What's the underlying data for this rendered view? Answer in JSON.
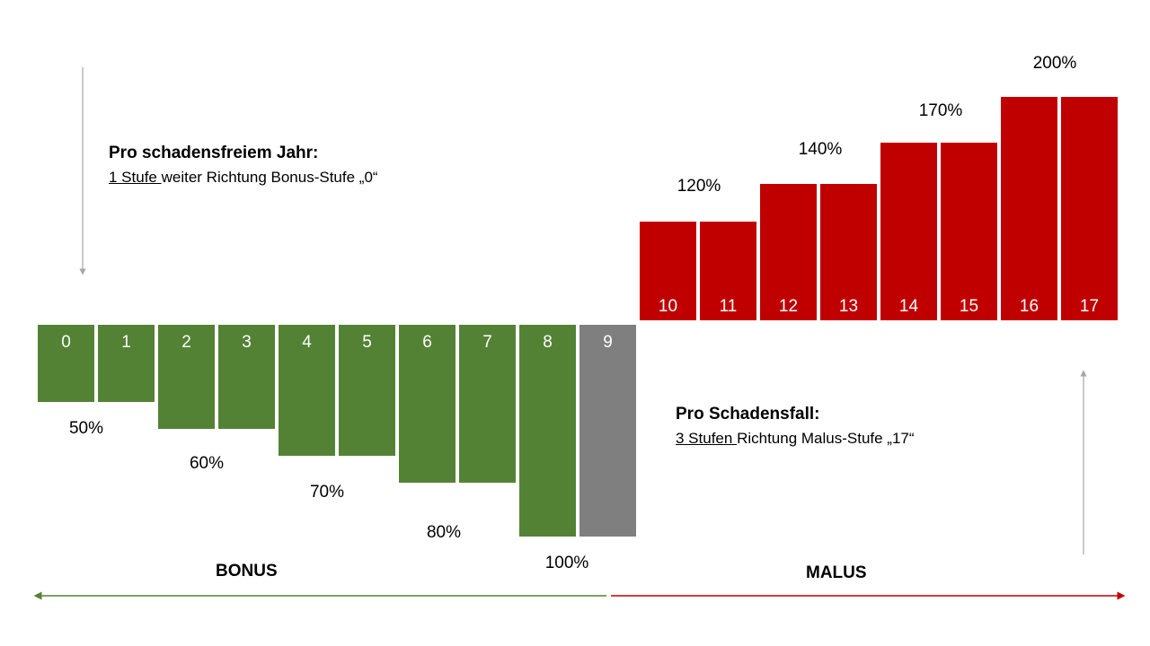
{
  "chart_data": {
    "type": "bar",
    "categories": [
      "0",
      "1",
      "2",
      "3",
      "4",
      "5",
      "6",
      "7",
      "8",
      "9",
      "10",
      "11",
      "12",
      "13",
      "14",
      "15",
      "16",
      "17"
    ],
    "values": [
      50,
      50,
      60,
      60,
      70,
      70,
      80,
      80,
      100,
      100,
      120,
      120,
      140,
      140,
      170,
      170,
      200,
      200
    ],
    "percent_labels": [
      {
        "text": "50%",
        "value": 50
      },
      {
        "text": "60%",
        "value": 60
      },
      {
        "text": "70%",
        "value": 70
      },
      {
        "text": "80%",
        "value": 80
      },
      {
        "text": "100%",
        "value": 100
      },
      {
        "text": "120%",
        "value": 120
      },
      {
        "text": "140%",
        "value": 140
      },
      {
        "text": "170%",
        "value": 170
      },
      {
        "text": "200%",
        "value": 200
      }
    ],
    "colors": {
      "bonus": "#548235",
      "neutral": "#7f7f7f",
      "malus": "#c00000",
      "bonus_arrow": "#548235",
      "malus_arrow": "#c00000",
      "guide_arrow": "#a6a6a6"
    }
  },
  "annotations": {
    "bonus_title": "Pro schadensfreiem Jahr:",
    "bonus_underlined": "1 Stufe ",
    "bonus_rest": "weiter Richtung Bonus-Stufe  „0“",
    "malus_title": "Pro Schadensfall:",
    "malus_underlined": "3 Stufen ",
    "malus_rest": "Richtung Malus-Stufe  „17“"
  },
  "sections": {
    "bonus": "BONUS",
    "malus": "MALUS"
  }
}
